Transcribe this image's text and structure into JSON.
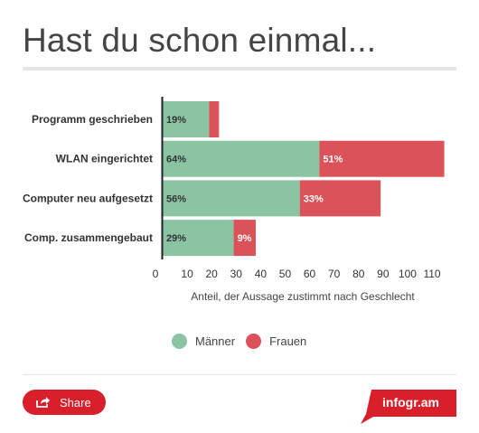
{
  "title": "Hast du schon einmal...",
  "chart_data": {
    "type": "bar",
    "orientation": "horizontal",
    "stacked": true,
    "categories": [
      "Programm geschrieben",
      "WLAN eingerichtet",
      "Computer neu aufgesetzt",
      "Comp. zusammengebaut"
    ],
    "series": [
      {
        "name": "Männer",
        "values": [
          19,
          64,
          56,
          29
        ],
        "labels": [
          "19%",
          "64%",
          "56%",
          "29%"
        ],
        "color": "#8bc4a3"
      },
      {
        "name": "Frauen",
        "values": [
          4,
          51,
          33,
          9
        ],
        "labels": [
          "",
          "51%",
          "33%",
          "9%"
        ],
        "color": "#db5258"
      }
    ],
    "xlabel": "Anteil, der Aussage zustimmt nach Geschlecht",
    "xticks": [
      0,
      10,
      20,
      30,
      40,
      50,
      60,
      70,
      80,
      90,
      100,
      110
    ],
    "xlim": [
      0,
      117
    ],
    "grid": false,
    "legend_position": "bottom"
  },
  "legend": [
    {
      "label": "Männer",
      "color": "#8bc4a3"
    },
    {
      "label": "Frauen",
      "color": "#db5258"
    }
  ],
  "share_label": "Share",
  "brand_label": "infogr.am",
  "colors": {
    "accent": "#d81f2a"
  }
}
